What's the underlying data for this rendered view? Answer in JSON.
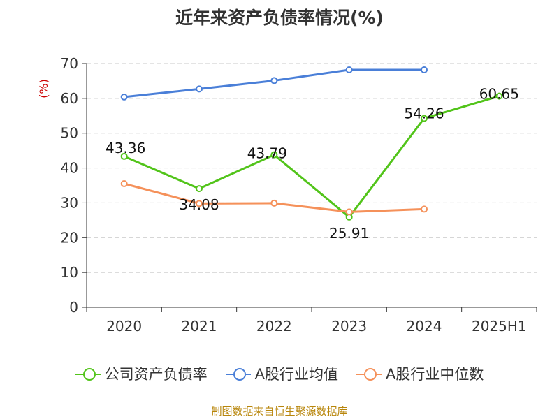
{
  "chart_data": {
    "type": "line",
    "title": "近年来资产负债率情况(%)",
    "ylabel": "(%)",
    "xlabel": "",
    "categories": [
      "2020",
      "2021",
      "2022",
      "2023",
      "2024",
      "2025H1"
    ],
    "ylim": [
      0,
      70
    ],
    "yticks": [
      0,
      10,
      20,
      30,
      40,
      50,
      60,
      70
    ],
    "grid": true,
    "legend_position": "bottom",
    "series": [
      {
        "name": "公司资产负债率",
        "color": "#52c41a",
        "values": [
          43.36,
          34.08,
          43.79,
          25.91,
          54.26,
          60.65
        ],
        "labels": [
          "43.36",
          "34.08",
          "43.79",
          "25.91",
          "54.26",
          "60.65"
        ]
      },
      {
        "name": "A股行业均值",
        "color": "#4a7fd8",
        "values": [
          60.4,
          62.7,
          65.1,
          68.2,
          68.2,
          null
        ]
      },
      {
        "name": "A股行业中位数",
        "color": "#f5915a",
        "values": [
          35.5,
          29.8,
          29.9,
          27.4,
          28.2,
          null
        ]
      }
    ]
  },
  "source_note": "制图数据来自恒生聚源数据库"
}
